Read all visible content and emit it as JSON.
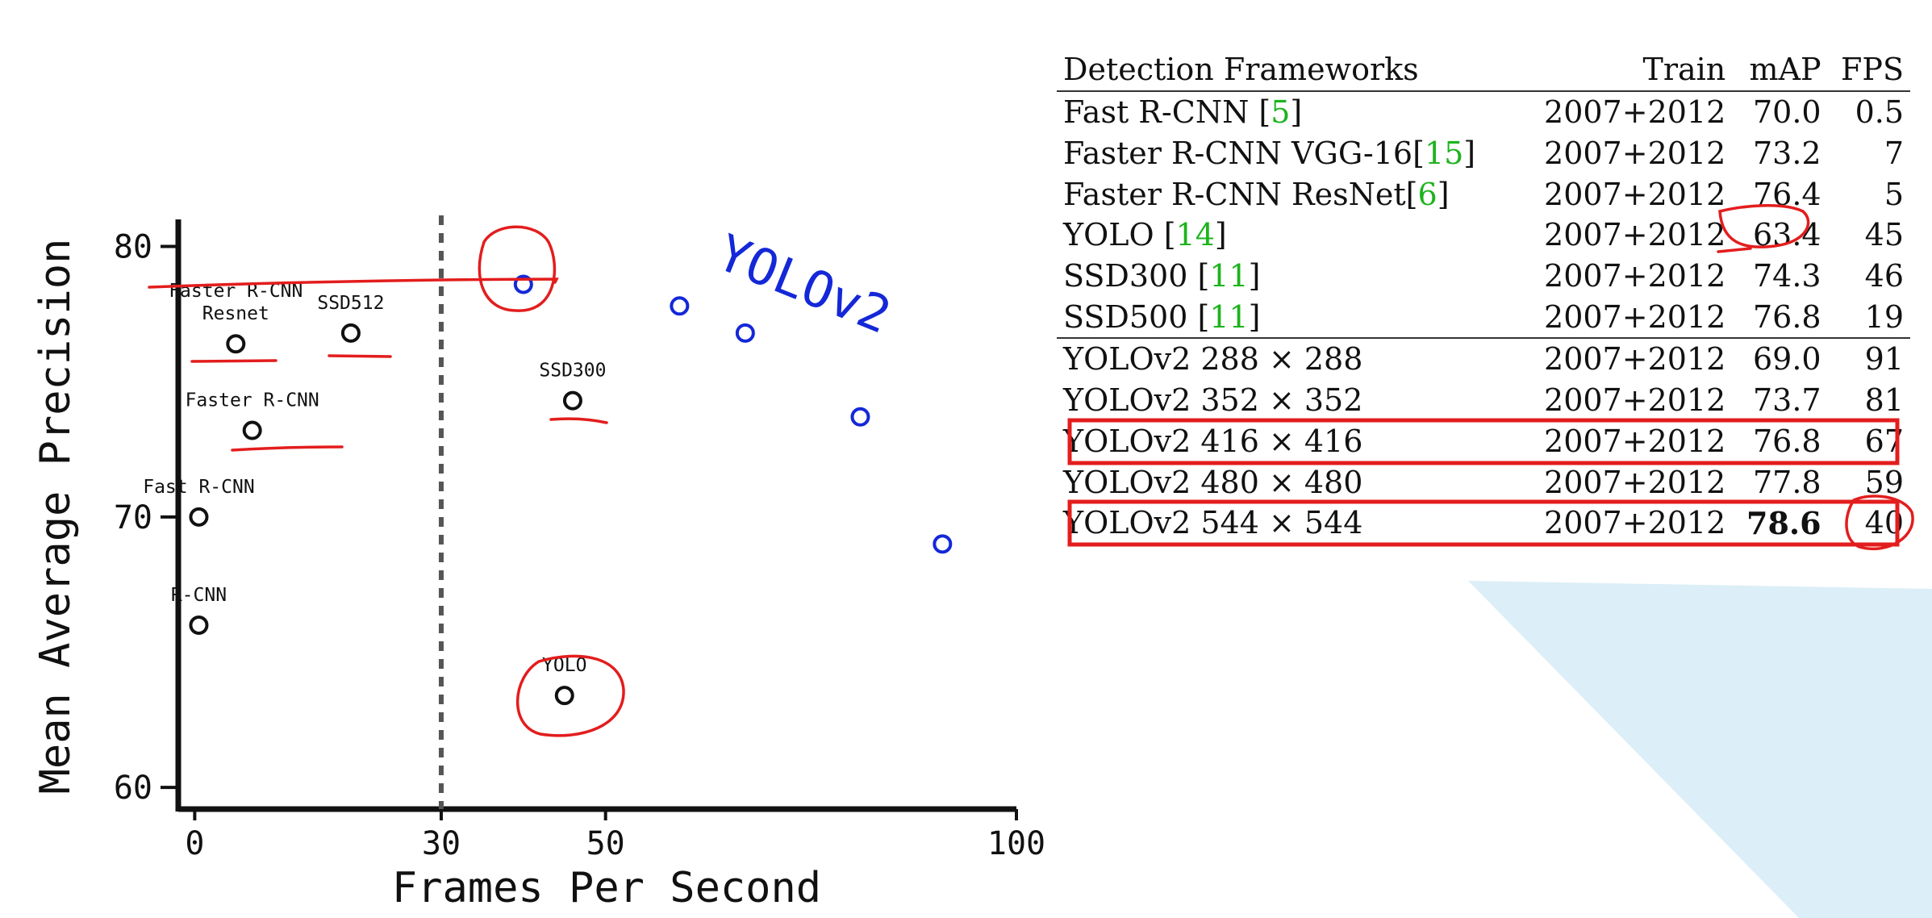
{
  "chart_data": {
    "type": "scatter",
    "xlabel": "Frames Per Second",
    "ylabel": "Mean Average Precision",
    "xlim": [
      -2,
      100
    ],
    "ylim": [
      59.2,
      81
    ],
    "xticks": [
      0,
      30,
      50,
      100
    ],
    "yticks": [
      60,
      70,
      80
    ],
    "reference_line": {
      "x": 30,
      "style": "dashed"
    },
    "grid": false,
    "series": [
      {
        "name": "",
        "color": "#111111",
        "points": [
          {
            "x": 0.5,
            "y": 66.0,
            "label": "R-CNN"
          },
          {
            "x": 0.5,
            "y": 70.0,
            "label": "Fast R-CNN"
          },
          {
            "x": 7,
            "y": 73.2,
            "label": "Faster R-CNN"
          },
          {
            "x": 5,
            "y": 76.4,
            "label": "Faster R-CNN Resnet"
          },
          {
            "x": 19,
            "y": 76.8,
            "label": "SSD512"
          },
          {
            "x": 46,
            "y": 74.3,
            "label": "SSD300"
          },
          {
            "x": 45,
            "y": 63.4,
            "label": "YOLO"
          }
        ]
      },
      {
        "name": "YOLOv2",
        "color": "#1428d8",
        "points": [
          {
            "x": 40,
            "y": 78.6
          },
          {
            "x": 59,
            "y": 77.8
          },
          {
            "x": 67,
            "y": 76.8
          },
          {
            "x": 81,
            "y": 73.7
          },
          {
            "x": 91,
            "y": 69.0
          }
        ]
      }
    ],
    "annotation": "YOLOv2"
  },
  "table": {
    "headers": [
      "Detection Frameworks",
      "Train",
      "mAP",
      "FPS"
    ],
    "rows": [
      {
        "name": "Fast R-CNN [",
        "ref": "5",
        "suffix": "]",
        "train": "2007+2012",
        "map": "70.0",
        "fps": "0.5"
      },
      {
        "name": "Faster R-CNN VGG-16[",
        "ref": "15",
        "suffix": "]",
        "train": "2007+2012",
        "map": "73.2",
        "fps": "7"
      },
      {
        "name": "Faster R-CNN ResNet[",
        "ref": "6",
        "suffix": "]",
        "train": "2007+2012",
        "map": "76.4",
        "fps": "5"
      },
      {
        "name": "YOLO [",
        "ref": "14",
        "suffix": "]",
        "train": "2007+2012",
        "map": "63.4",
        "fps": "45"
      },
      {
        "name": "SSD300 [",
        "ref": "11",
        "suffix": "]",
        "train": "2007+2012",
        "map": "74.3",
        "fps": "46"
      },
      {
        "name": "SSD500 [",
        "ref": "11",
        "suffix": "]",
        "train": "2007+2012",
        "map": "76.8",
        "fps": "19"
      },
      {
        "name": "YOLOv2 288 × 288",
        "ref": "",
        "suffix": "",
        "train": "2007+2012",
        "map": "69.0",
        "fps": "91"
      },
      {
        "name": "YOLOv2 352 × 352",
        "ref": "",
        "suffix": "",
        "train": "2007+2012",
        "map": "73.7",
        "fps": "81"
      },
      {
        "name": "YOLOv2 416 × 416",
        "ref": "",
        "suffix": "",
        "train": "2007+2012",
        "map": "76.8",
        "fps": "67"
      },
      {
        "name": "YOLOv2 480 × 480",
        "ref": "",
        "suffix": "",
        "train": "2007+2012",
        "map": "77.8",
        "fps": "59"
      },
      {
        "name": "YOLOv2 544 × 544",
        "ref": "",
        "suffix": "",
        "train": "2007+2012",
        "map": "78.6",
        "fps": "40"
      }
    ],
    "bold_map_row": 10,
    "highlighted_rows": [
      8,
      10
    ],
    "group_break_before": 6
  },
  "colors": {
    "ink_red": "#e31d1d",
    "yolov2_blue": "#1428d8",
    "reference_green": "#1db31d",
    "axis": "#111111",
    "deco_blue": "#cfe6f4"
  }
}
